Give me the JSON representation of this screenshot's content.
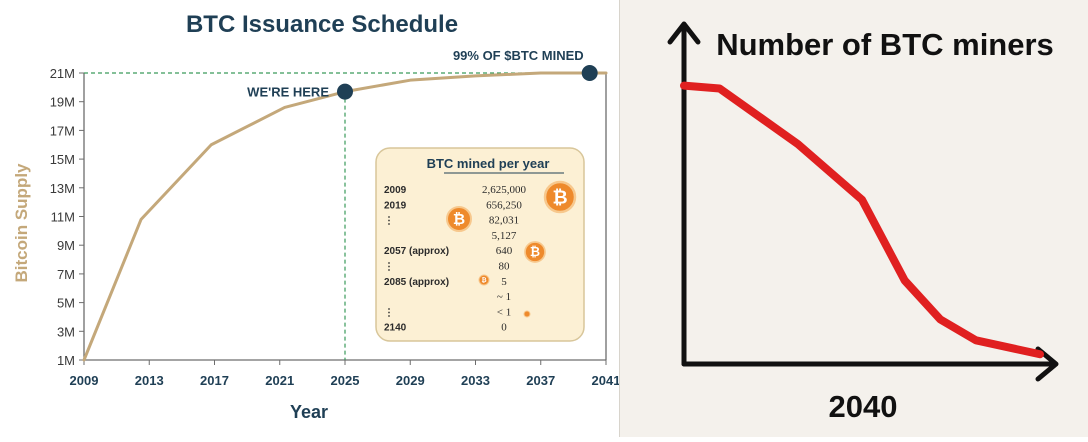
{
  "colors": {
    "curve": "#c4a87a",
    "dark": "#1f3f55",
    "grid_dash": "#3a9a5a",
    "right_curve": "#e02020",
    "coin": "#ee8a2c",
    "inset_bg": "#fcf0d4",
    "inset_border": "#d8c69a"
  },
  "chart_data": [
    {
      "type": "line",
      "title": "BTC Issuance Schedule",
      "xlabel": "Year",
      "ylabel": "Bitcoin Supply",
      "x_ticks": [
        "2009",
        "2013",
        "2017",
        "2021",
        "2025",
        "2029",
        "2033",
        "2037",
        "2041"
      ],
      "y_ticks": [
        "1M",
        "3M",
        "5M",
        "7M",
        "9M",
        "11M",
        "13M",
        "15M",
        "17M",
        "19M",
        "21M"
      ],
      "xlim": [
        2009,
        2041
      ],
      "ylim": [
        1,
        21
      ],
      "grid": false,
      "series": [
        {
          "x": [
            2009,
            2012.5,
            2016.8,
            2021.3,
            2025,
            2029,
            2033,
            2037,
            2041
          ],
          "y": [
            1,
            10.8,
            16.0,
            18.6,
            19.7,
            20.5,
            20.8,
            21.0,
            21.0
          ]
        }
      ],
      "annotations": [
        {
          "label": "WE'RE HERE",
          "x": 2025,
          "y": 19.7
        },
        {
          "label": "99% OF $BTC MINED",
          "x": 2040,
          "y": 21.0
        }
      ],
      "inset": {
        "title": "BTC mined per year",
        "rows": [
          {
            "year": "2009",
            "value": "2,625,000"
          },
          {
            "year": "2019",
            "value": "656,250"
          },
          {
            "year": "⋮",
            "value": "82,031"
          },
          {
            "year": "",
            "value": "5,127"
          },
          {
            "year": "2057 (approx)",
            "value": "640"
          },
          {
            "year": "⋮",
            "value": "80"
          },
          {
            "year": "2085 (approx)",
            "value": "5"
          },
          {
            "year": "",
            "value": "~ 1"
          },
          {
            "year": "⋮",
            "value": "< 1"
          },
          {
            "year": "2140",
            "value": "0"
          }
        ]
      }
    },
    {
      "type": "line",
      "title": "Number of BTC miners",
      "xlabel": "2040",
      "ylabel": "",
      "x": [
        0,
        1.0,
        3.2,
        5.0,
        6.2,
        7.2,
        8.2,
        10.0
      ],
      "y": [
        10,
        9.9,
        7.9,
        5.9,
        3.0,
        1.6,
        0.85,
        0.35
      ],
      "xlim": [
        0,
        10
      ],
      "ylim": [
        0,
        12
      ],
      "grid": false
    }
  ],
  "icons": {
    "coin_glyph": "₿"
  }
}
